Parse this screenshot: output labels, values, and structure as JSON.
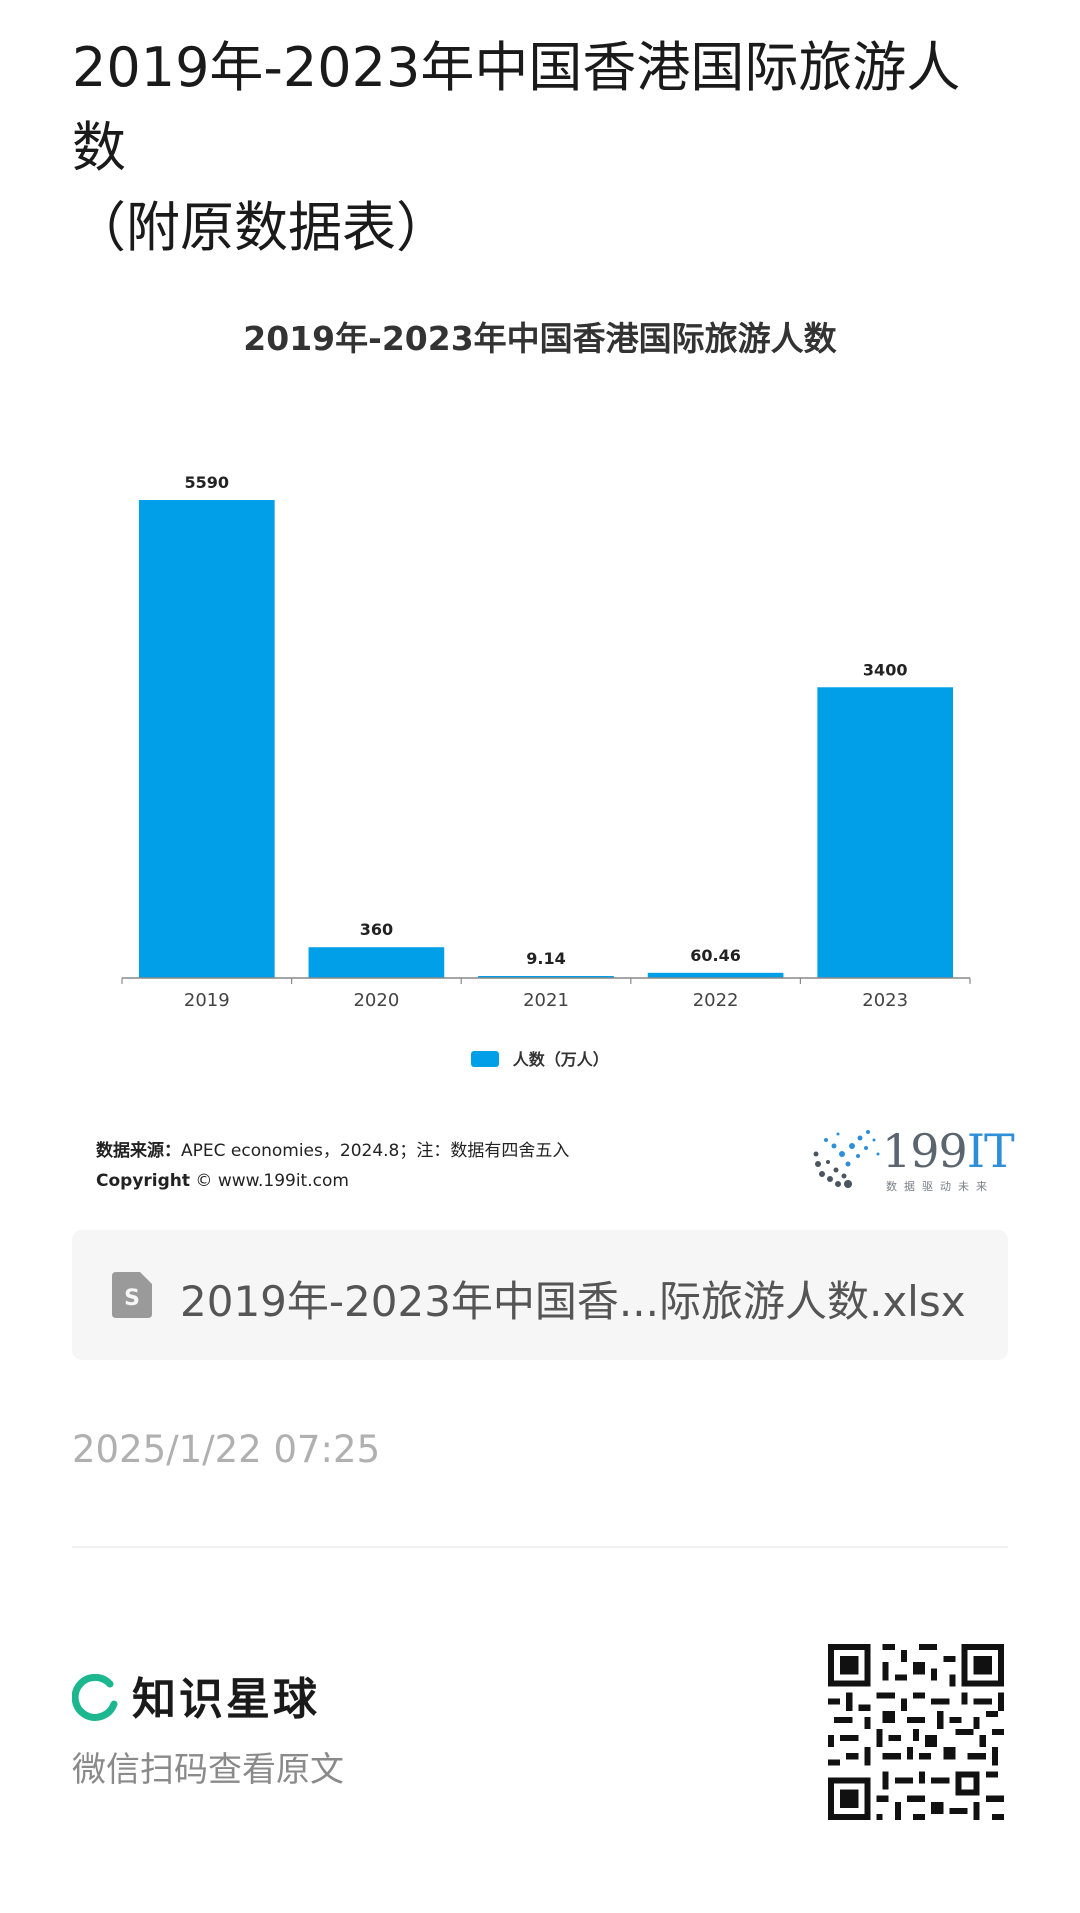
{
  "post": {
    "title_line1": "2019年-2023年中国香港国际旅游人数",
    "title_line2": "（附原数据表）"
  },
  "chart_data": {
    "type": "bar",
    "title": "2019年-2023年中国香港国际旅游人数",
    "categories": [
      "2019",
      "2020",
      "2021",
      "2022",
      "2023"
    ],
    "series": [
      {
        "name": "人数（万人）",
        "values": [
          5590,
          360,
          9.14,
          60.46,
          3400
        ]
      }
    ],
    "data_labels": [
      "5590",
      "360",
      "9.14",
      "60.46",
      "3400"
    ],
    "xlabel": "",
    "ylabel": "",
    "ylim": [
      0,
      5590
    ],
    "grid": false,
    "legend_position": "bottom",
    "bar_color": "#009fe8"
  },
  "source": {
    "label": "数据来源：",
    "text": "APEC economies，2024.8；注：数据有四舍五入",
    "copyright_label": "Copyright",
    "copyright_text": "© www.199it.com"
  },
  "brand": {
    "name_199": "199",
    "name_it": "IT",
    "tagline": "数据驱动未来",
    "icon": "dandelion-dots-icon"
  },
  "file": {
    "name": "2019年-2023年中国香...际旅游人数.xlsx",
    "icon": "spreadsheet-file-icon"
  },
  "date": "2025/1/22 07:25",
  "footer": {
    "planet_name": "知识星球",
    "planet_icon": "planet-ring-icon",
    "scan_hint": "微信扫码查看原文",
    "qr_icon": "qr-code-icon"
  },
  "colors": {
    "accent_bar": "#009fe8",
    "planet_green": "#1db78f",
    "brand_blue": "#2f8ed8"
  }
}
